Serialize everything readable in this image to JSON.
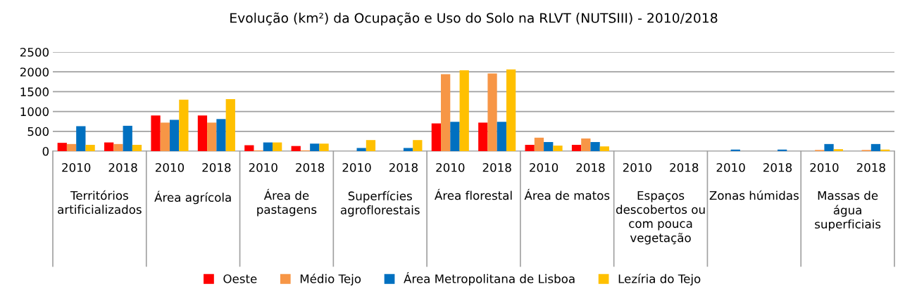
{
  "chart_data": {
    "type": "bar",
    "title": "Evolução (km²) da Ocupação e Uso do Solo na RLVT (NUTSIII) - 2010/2018",
    "categories": [
      "2010",
      "2018",
      "2010",
      "2018",
      "2010",
      "2018",
      "2010",
      "2018",
      "2010",
      "2018",
      "2010",
      "2018",
      "2010",
      "2018",
      "2010",
      "2018",
      "2010",
      "2018"
    ],
    "annotations": [
      "Territórios\nartificializados",
      "Área agrícola",
      "Área de\npastagens",
      "Superfícies\nagroflorestais",
      "Área florestal",
      "Área de matos",
      "Espaços\ndescobertos ou\ncom pouca\nvegetação",
      "Zonas húmidas",
      "Massas de\nágua\nsuperficiais"
    ],
    "series": [
      {
        "name": "Oeste",
        "color": "#ff0000",
        "values": [
          210,
          220,
          900,
          900,
          150,
          130,
          0,
          0,
          700,
          720,
          160,
          160,
          0,
          0,
          0,
          0,
          0,
          0
        ]
      },
      {
        "name": "Médio Tejo",
        "color": "#f79646",
        "values": [
          180,
          180,
          720,
          720,
          20,
          20,
          0,
          0,
          1940,
          1960,
          340,
          320,
          0,
          0,
          0,
          0,
          30,
          30
        ]
      },
      {
        "name": "Área Metropolitana de Lisboa",
        "color": "#0070c0",
        "values": [
          630,
          640,
          790,
          810,
          220,
          190,
          80,
          80,
          740,
          740,
          230,
          230,
          0,
          0,
          40,
          40,
          180,
          180
        ]
      },
      {
        "name": "Lezíria do Tejo",
        "color": "#ffc000",
        "values": [
          160,
          160,
          1300,
          1310,
          220,
          190,
          280,
          280,
          2040,
          2060,
          140,
          120,
          0,
          0,
          0,
          0,
          50,
          40
        ]
      }
    ],
    "ylim": [
      0,
      2500
    ],
    "yticks": [
      0,
      500,
      1000,
      1500,
      2000,
      2500
    ],
    "grid": "y",
    "legend": "bottom"
  }
}
